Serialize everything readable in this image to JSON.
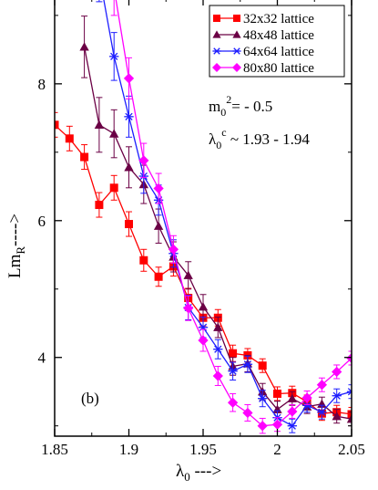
{
  "chart_data": {
    "type": "line",
    "title": "",
    "xlabel": {
      "main": "λ",
      "sub": "0",
      "rest": " --->"
    },
    "ylabel": {
      "main": "Lm",
      "sub": "R",
      "rest": "---->"
    },
    "xlim": [
      1.85,
      2.05
    ],
    "ylim": [
      2.8,
      9.4
    ],
    "x_ticks": [
      1.85,
      1.9,
      1.95,
      2.0,
      2.05
    ],
    "x_tick_labels": [
      "1.85",
      "1.9",
      "1.95",
      "2",
      "2.05"
    ],
    "y_ticks": [
      4,
      6,
      8
    ],
    "y_tick_labels": [
      "4",
      "6",
      "8"
    ],
    "legend_position": "top-right",
    "annotations": {
      "mass": {
        "main": "m",
        "sub": "0",
        "sup": "2",
        "rest": "= - 0.5"
      },
      "lambda_c": {
        "main": "λ",
        "sub": "0",
        "sup": "c",
        "rest": " ~ 1.93 - 1.94"
      },
      "panel": "(b)"
    },
    "series": [
      {
        "name": "32x32 lattice",
        "color": "#ff0000",
        "marker": "square",
        "x": [
          1.85,
          1.86,
          1.87,
          1.88,
          1.89,
          1.9,
          1.91,
          1.92,
          1.93,
          1.94,
          1.95,
          1.96,
          1.97,
          1.98,
          1.99,
          2.0,
          2.01,
          2.02,
          2.03,
          2.04,
          2.05
        ],
        "y": [
          7.4,
          7.2,
          6.93,
          6.23,
          6.48,
          5.95,
          5.42,
          5.18,
          5.33,
          4.87,
          4.58,
          4.58,
          4.06,
          4.03,
          3.88,
          3.47,
          3.48,
          3.35,
          3.18,
          3.2,
          3.17
        ],
        "err": [
          0.18,
          0.18,
          0.18,
          0.18,
          0.18,
          0.18,
          0.16,
          0.14,
          0.14,
          0.14,
          0.12,
          0.12,
          0.12,
          0.1,
          0.1,
          0.1,
          0.1,
          0.1,
          0.1,
          0.1,
          0.1
        ]
      },
      {
        "name": "48x48 lattice",
        "color": "#6b0045",
        "marker": "triangle",
        "x": [
          1.87,
          1.88,
          1.89,
          1.9,
          1.91,
          1.92,
          1.93,
          1.94,
          1.95,
          1.96,
          1.97,
          1.98,
          1.99,
          2.0,
          2.01,
          2.02,
          2.03,
          2.04,
          2.05
        ],
        "y": [
          8.54,
          7.4,
          7.27,
          6.78,
          6.53,
          5.92,
          5.47,
          5.2,
          4.74,
          4.44,
          3.87,
          3.91,
          3.5,
          3.24,
          3.4,
          3.28,
          3.32,
          3.14,
          3.1
        ],
        "err": [
          0.45,
          0.4,
          0.35,
          0.3,
          0.28,
          0.25,
          0.22,
          0.2,
          0.18,
          0.15,
          0.13,
          0.12,
          0.12,
          0.12,
          0.1,
          0.1,
          0.1,
          0.1,
          0.1
        ]
      },
      {
        "name": "64x64 lattice",
        "color": "#1e1eff",
        "marker": "star",
        "x": [
          1.88,
          1.89,
          1.9,
          1.91,
          1.92,
          1.93,
          1.94,
          1.95,
          1.96,
          1.97,
          1.98,
          1.99,
          2.0,
          2.01,
          2.02,
          2.03,
          2.04,
          2.05
        ],
        "y": [
          9.6,
          8.4,
          7.52,
          6.65,
          6.3,
          5.52,
          4.73,
          4.44,
          4.12,
          3.8,
          3.9,
          3.4,
          3.12,
          3.0,
          3.3,
          3.2,
          3.44,
          3.5
        ],
        "err": [
          0.4,
          0.35,
          0.3,
          0.25,
          0.22,
          0.2,
          0.18,
          0.15,
          0.14,
          0.13,
          0.12,
          0.12,
          0.1,
          0.1,
          0.1,
          0.1,
          0.1,
          0.1
        ]
      },
      {
        "name": "80x80 lattice",
        "color": "#ff00ff",
        "marker": "diamond",
        "x": [
          1.89,
          1.9,
          1.91,
          1.92,
          1.93,
          1.94,
          1.95,
          1.96,
          1.97,
          1.98,
          1.99,
          2.0,
          2.01,
          2.02,
          2.03,
          2.04,
          2.05
        ],
        "y": [
          9.4,
          8.08,
          6.88,
          6.47,
          5.58,
          4.72,
          4.25,
          3.73,
          3.34,
          3.19,
          3.0,
          3.02,
          3.21,
          3.41,
          3.6,
          3.79,
          3.99
        ],
        "err": [
          0.4,
          0.3,
          0.25,
          0.22,
          0.2,
          0.18,
          0.16,
          0.14,
          0.13,
          0.12,
          0.11,
          0.1,
          0.1,
          0.1,
          0.1,
          0.1,
          0.1
        ]
      }
    ]
  }
}
